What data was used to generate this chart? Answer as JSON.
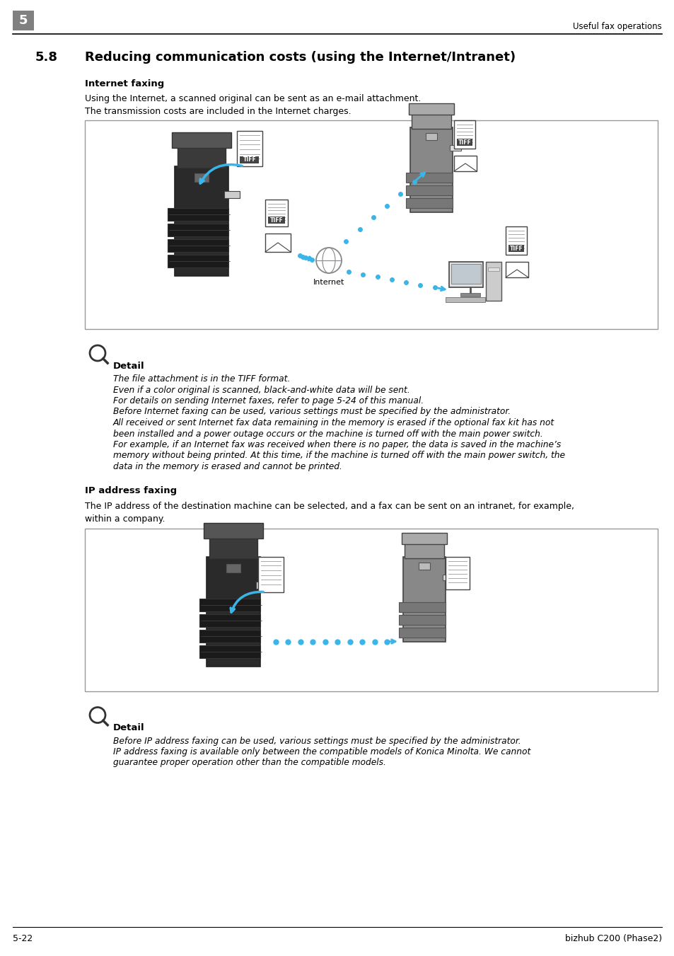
{
  "page_number_box": "5",
  "header_right": "Useful fax operations",
  "section_number": "5.8",
  "section_title": "Reducing communication costs (using the Internet/Intranet)",
  "subsection1_title": "Internet faxing",
  "subsection1_para1": "Using the Internet, a scanned original can be sent as an e-mail attachment.",
  "subsection1_para2": "The transmission costs are included in the Internet charges.",
  "detail1_label": "Detail",
  "detail1_lines": [
    "The file attachment is in the TIFF format.",
    "Even if a color original is scanned, black-and-white data will be sent.",
    "For details on sending Internet faxes, refer to page 5-24 of this manual.",
    "Before Internet faxing can be used, various settings must be specified by the administrator.",
    "All received or sent Internet fax data remaining in the memory is erased if the optional fax kit has not",
    "been installed and a power outage occurs or the machine is turned off with the main power switch.",
    "For example, if an Internet fax was received when there is no paper, the data is saved in the machine’s",
    "memory without being printed. At this time, if the machine is turned off with the main power switch, the",
    "data in the memory is erased and cannot be printed."
  ],
  "subsection2_title": "IP address faxing",
  "subsection2_para1": "The IP address of the destination machine can be selected, and a fax can be sent on an intranet, for example,",
  "subsection2_para2": "within a company.",
  "detail2_label": "Detail",
  "detail2_lines": [
    "Before IP address faxing can be used, various settings must be specified by the administrator.",
    "IP address faxing is available only between the compatible models of Konica Minolta. We cannot",
    "guarantee proper operation other than the compatible models."
  ],
  "footer_left": "5-22",
  "footer_right": "bizhub C200 (Phase2)",
  "bg_color": "#ffffff",
  "box_border_color": "#999999",
  "header_line_color": "#000000",
  "footer_line_color": "#000000",
  "text_color": "#000000",
  "gray_box_color": "#808080",
  "cyan_color": "#3bb5e8"
}
